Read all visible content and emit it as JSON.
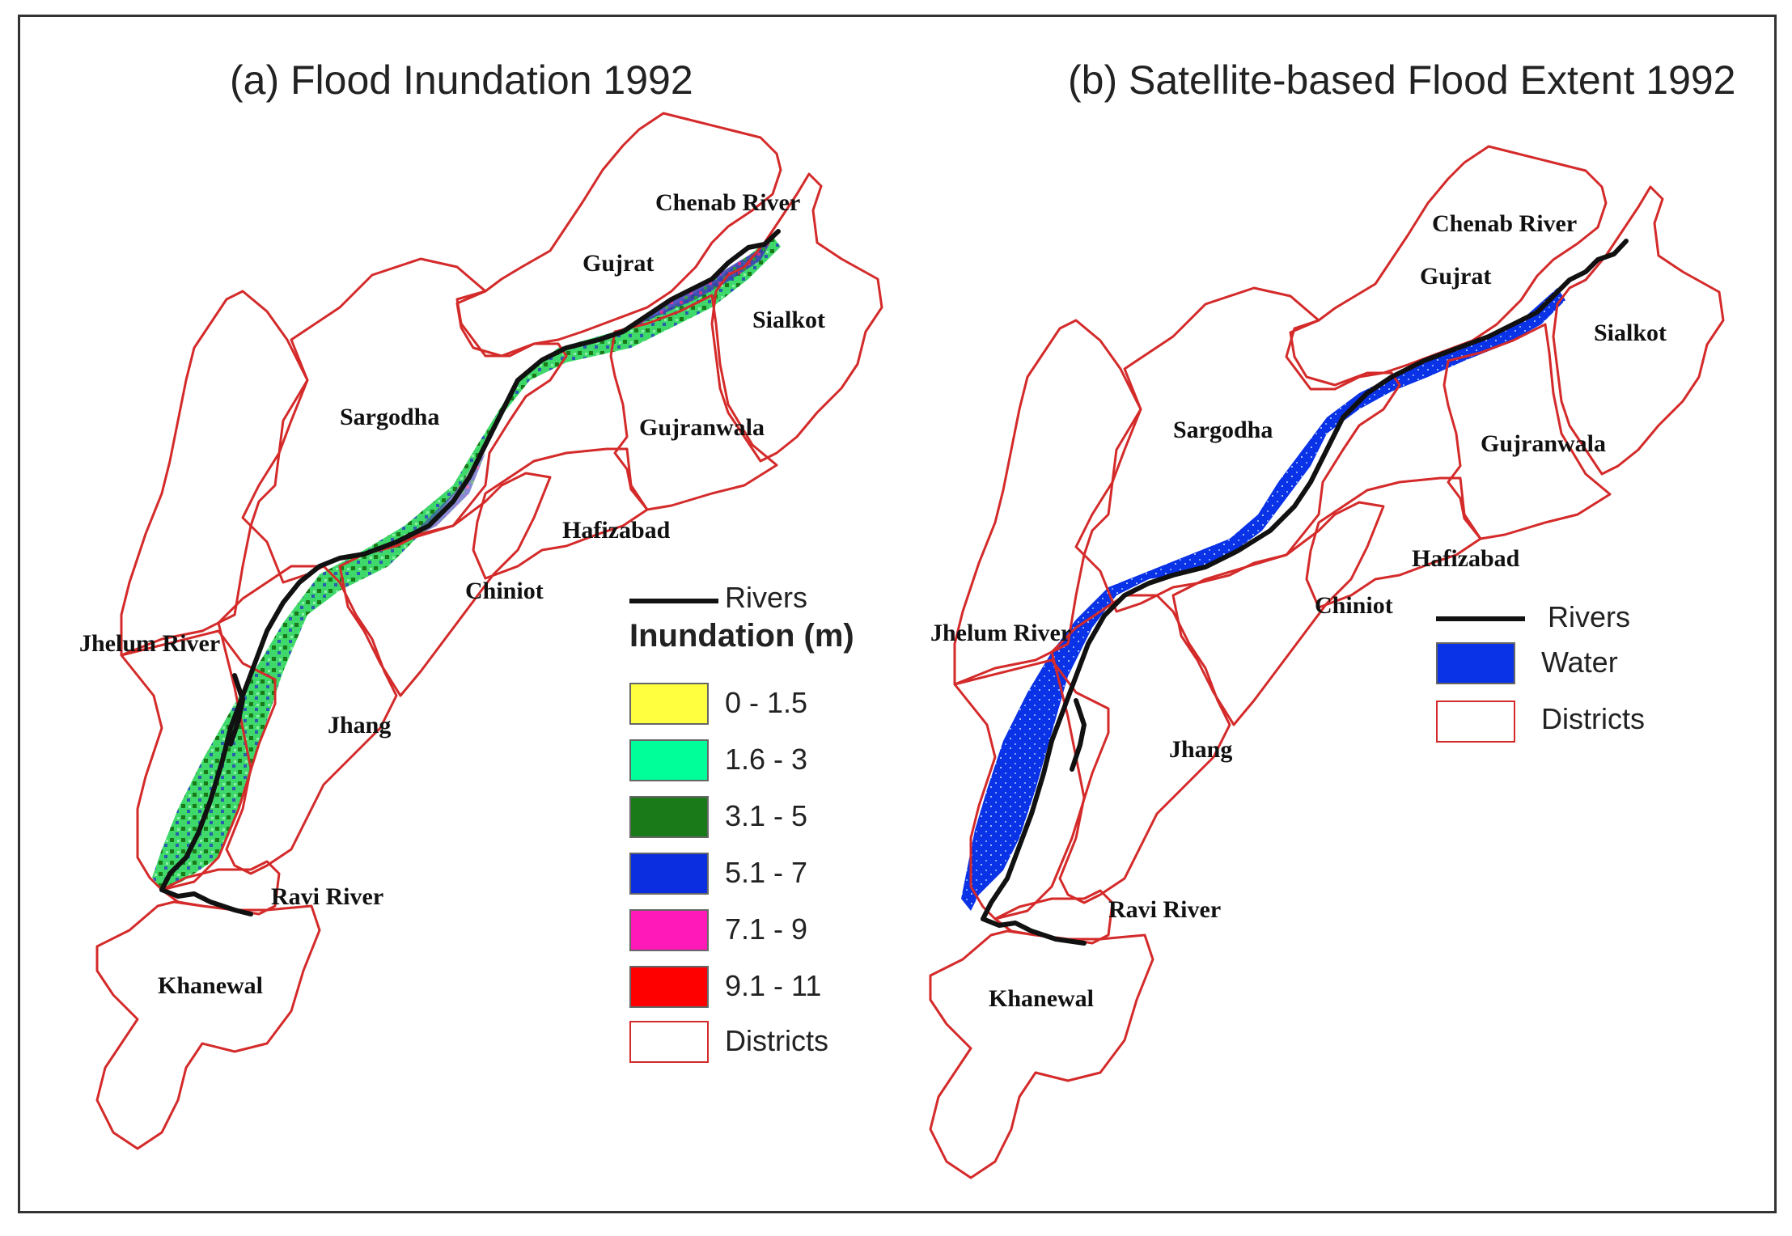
{
  "panels": {
    "a": {
      "title": "(a) Flood Inundation 1992",
      "labels": {
        "chenab": "Chenab River",
        "gujrat": "Gujrat",
        "sialkot": "Sialkot",
        "sargodha": "Sargodha",
        "gujranwala": "Gujranwala",
        "hafizabad": "Hafizabad",
        "chiniot": "Chiniot",
        "jhelum": "Jhelum River",
        "jhang": "Jhang",
        "ravi": "Ravi River",
        "khanewal": "Khanewal"
      },
      "legend": {
        "rivers": "Rivers",
        "heading": "Inundation (m)",
        "classes": [
          {
            "label": "0 - 1.5",
            "color": "#ffff40"
          },
          {
            "label": "1.6 - 3",
            "color": "#00ff99"
          },
          {
            "label": "3.1 - 5",
            "color": "#1a7a1a"
          },
          {
            "label": "5.1 - 7",
            "color": "#0a2ee0"
          },
          {
            "label": "7.1 - 9",
            "color": "#ff19b8"
          },
          {
            "label": "9.1 - 11",
            "color": "#ff0000"
          }
        ],
        "districts": "Districts"
      }
    },
    "b": {
      "title": "(b) Satellite-based Flood Extent 1992",
      "labels": {
        "chenab": "Chenab River",
        "gujrat": "Gujrat",
        "sialkot": "Sialkot",
        "sargodha": "Sargodha",
        "gujranwala": "Gujranwala",
        "hafizabad": "Hafizabad",
        "chiniot": "Chiniot",
        "jhelum": "Jhelum River",
        "jhang": "Jhang",
        "ravi": "Ravi River",
        "khanewal": "Khanewal"
      },
      "legend": {
        "rivers": "Rivers",
        "water": "Water",
        "water_color": "#0a32e6",
        "districts": "Districts"
      }
    }
  },
  "colors": {
    "district_outline": "#d42a2a",
    "river": "#111111"
  }
}
